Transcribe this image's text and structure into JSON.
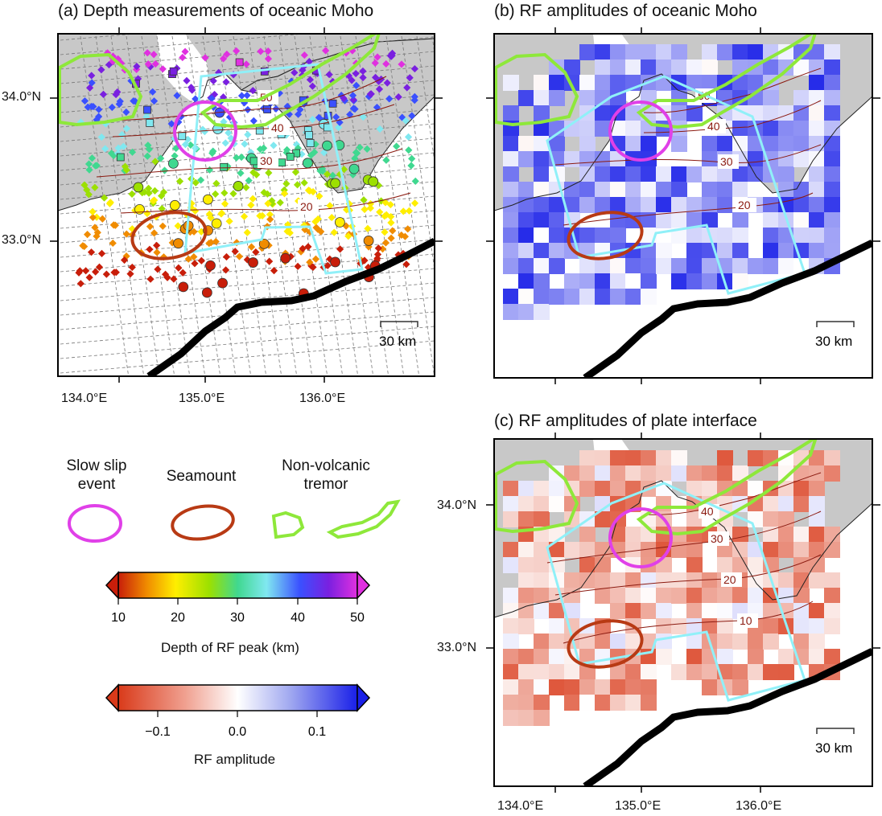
{
  "panels": {
    "a": {
      "title": "(a) Depth measurements of oceanic Moho",
      "contours": [
        "50",
        "40",
        "30",
        "20"
      ],
      "scale": "30 km"
    },
    "b": {
      "title": "(b) RF amplitudes of oceanic Moho",
      "contours": [
        "50",
        "40",
        "30",
        "20"
      ],
      "scale": "30 km"
    },
    "c": {
      "title": "(c) RF amplitudes of plate interface",
      "contours": [
        "40",
        "30",
        "20",
        "10"
      ],
      "scale": "30 km"
    }
  },
  "axes": {
    "lat_labels": [
      "34.0°N",
      "33.0°N"
    ],
    "lon_labels": [
      "134.0°E",
      "135.0°E",
      "136.0°E"
    ]
  },
  "legend": {
    "slow_slip": "Slow slip event",
    "seamount": "Seamount",
    "tremor": "Non-volcanic tremor"
  },
  "colorbar_depth": {
    "ticks": [
      "10",
      "20",
      "30",
      "40",
      "50"
    ],
    "label": "Depth of RF peak (km)",
    "colors": [
      "#c81e0a",
      "#f08c00",
      "#ffee00",
      "#9ce000",
      "#40d890",
      "#80e8f0",
      "#3a50ff",
      "#7a20e0",
      "#e030e0"
    ]
  },
  "colorbar_amp": {
    "ticks": [
      "−0.1",
      "0.0",
      "0.1"
    ],
    "label": "RF amplitude",
    "colors": [
      "#d93a1a",
      "#f0a090",
      "#ffffff",
      "#a0a8f0",
      "#1a20e8"
    ]
  },
  "colors": {
    "land": "#c8c8c8",
    "slow_slip": "#e040e8",
    "seamount": "#b83a14",
    "tremor": "#8ee83a",
    "region": "#90f0f8",
    "trench": "#000000",
    "contour": "#8b1a10"
  }
}
